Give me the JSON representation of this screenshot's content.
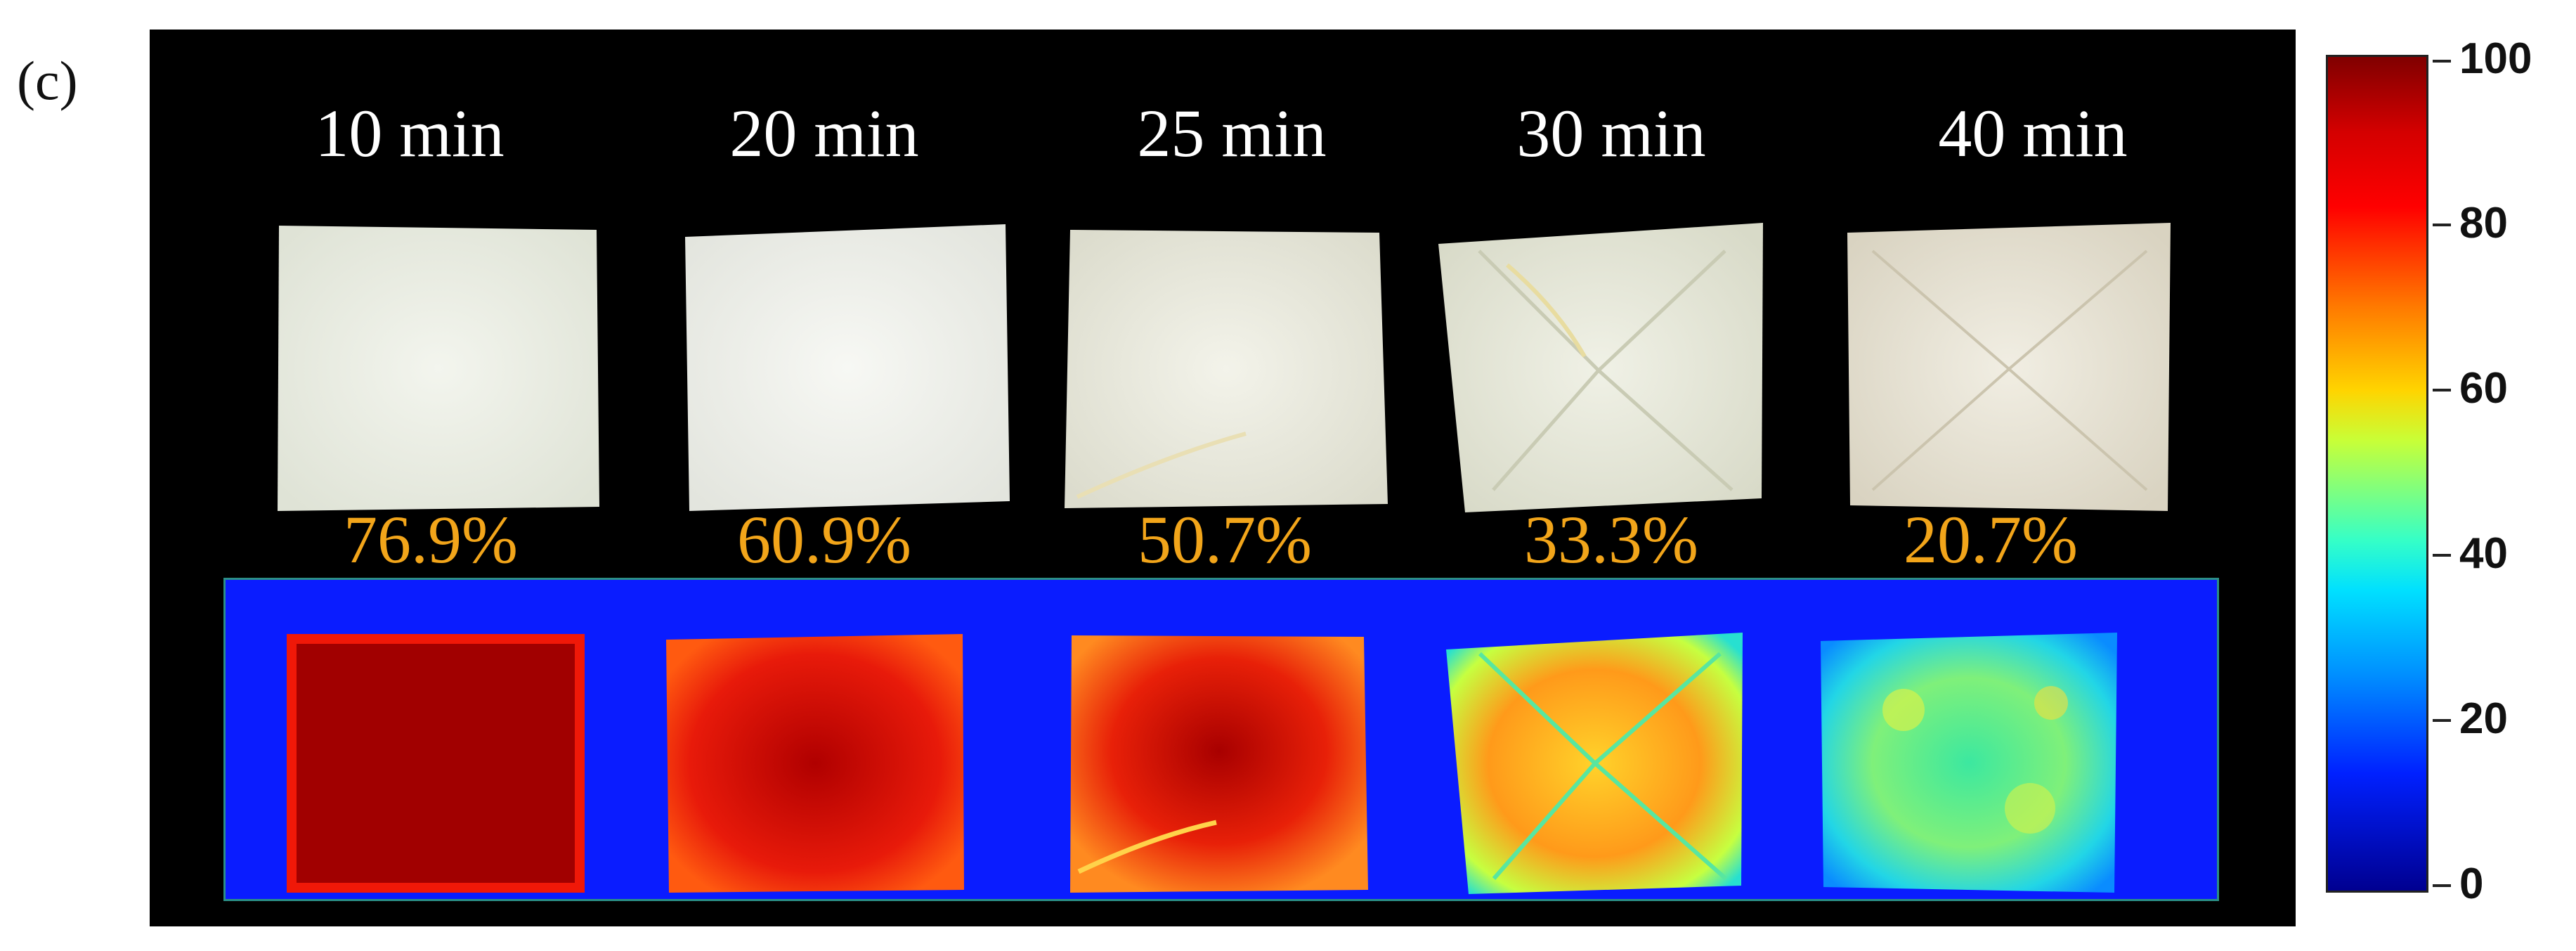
{
  "figure": {
    "panel_label": "(c)",
    "samples": [
      {
        "time": "10 min",
        "percent": "76.9%"
      },
      {
        "time": "20 min",
        "percent": "60.9%"
      },
      {
        "time": "25 min",
        "percent": "50.7%"
      },
      {
        "time": "30 min",
        "percent": "33.3%"
      },
      {
        "time": "40 min",
        "percent": "20.7%"
      }
    ],
    "colorbar": {
      "ticks": [
        "100",
        "80",
        "60",
        "40",
        "20",
        "0"
      ],
      "min": 0,
      "max": 100
    },
    "colors": {
      "background": "#000000",
      "time_text": "#ffffff",
      "percent_text": "#f2a51a",
      "heatmap_background": "#0a1cff"
    }
  }
}
